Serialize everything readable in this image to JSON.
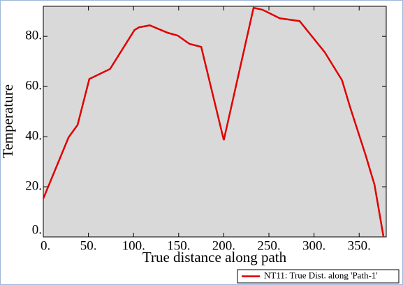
{
  "chart_data": {
    "type": "line",
    "x_label": "True distance along path",
    "y_label": "Temperature",
    "xlim": [
      0,
      380
    ],
    "ylim": [
      0,
      92
    ],
    "xticks": [
      {
        "value": 0,
        "label": "0."
      },
      {
        "value": 50,
        "label": "50."
      },
      {
        "value": 100,
        "label": "100."
      },
      {
        "value": 150,
        "label": "150."
      },
      {
        "value": 200,
        "label": "200."
      },
      {
        "value": 250,
        "label": "250."
      },
      {
        "value": 300,
        "label": "300."
      },
      {
        "value": 350,
        "label": "350."
      }
    ],
    "yticks": [
      {
        "value": 0,
        "label": "0."
      },
      {
        "value": 20,
        "label": "20."
      },
      {
        "value": 40,
        "label": "40."
      },
      {
        "value": 60,
        "label": "60."
      },
      {
        "value": 80,
        "label": "80."
      }
    ],
    "x": [
      0,
      28,
      38,
      51,
      74,
      101,
      106,
      118,
      138,
      149,
      162,
      175,
      200,
      233,
      243,
      262,
      284,
      312,
      331,
      340,
      357,
      367,
      377
    ],
    "series": [
      {
        "name": "NT11: True Dist. along 'Path-1'",
        "color": "#e00000",
        "values": [
          15.3,
          39.7,
          44.7,
          63,
          67,
          82.5,
          83.6,
          84.4,
          81.4,
          80.3,
          77,
          75.8,
          38.6,
          91.4,
          90.6,
          87.2,
          86.1,
          73.6,
          62.5,
          51.7,
          32.8,
          20.8,
          0
        ]
      }
    ],
    "background": "#d9d9d9"
  }
}
